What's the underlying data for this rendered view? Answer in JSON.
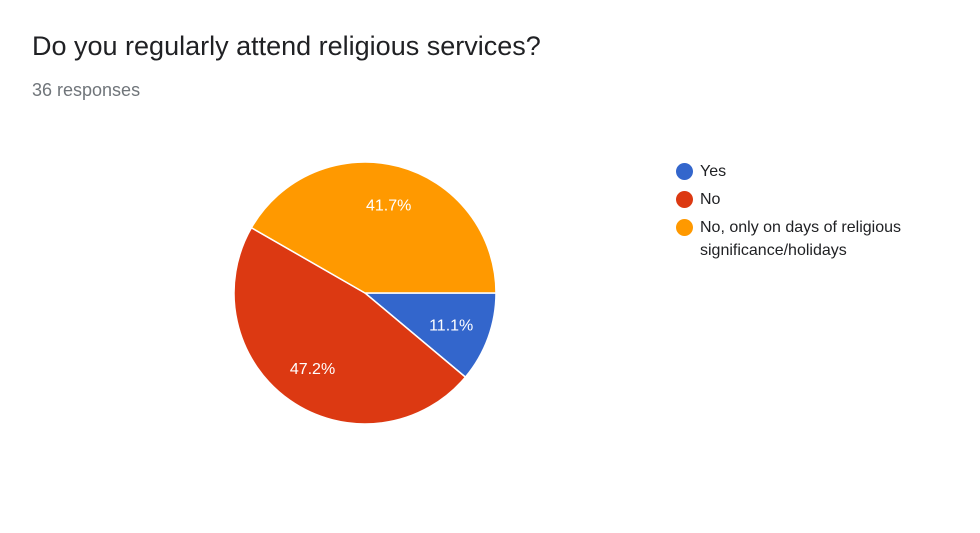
{
  "header": {
    "title": "Do you regularly attend religious services?",
    "subtitle": "36 responses"
  },
  "chart_data": {
    "type": "pie",
    "title": "Do you regularly attend religious services?",
    "subtitle": "36 responses",
    "categories": [
      "Yes",
      "No",
      "No, only on days of religious significance/holidays"
    ],
    "values": [
      11.1,
      47.2,
      41.7
    ],
    "data_labels": [
      "11.1%",
      "47.2%",
      "41.7%"
    ],
    "colors": [
      "#3366cc",
      "#dc3912",
      "#ff9900"
    ],
    "legend_position": "right",
    "slice_order": "clockwise from 3 o'clock"
  },
  "legend": {
    "items": [
      {
        "label": "Yes",
        "color": "#3366cc"
      },
      {
        "label": "No",
        "color": "#dc3912"
      },
      {
        "label": "No, only on days of religious significance/holidays",
        "color": "#ff9900"
      }
    ]
  }
}
